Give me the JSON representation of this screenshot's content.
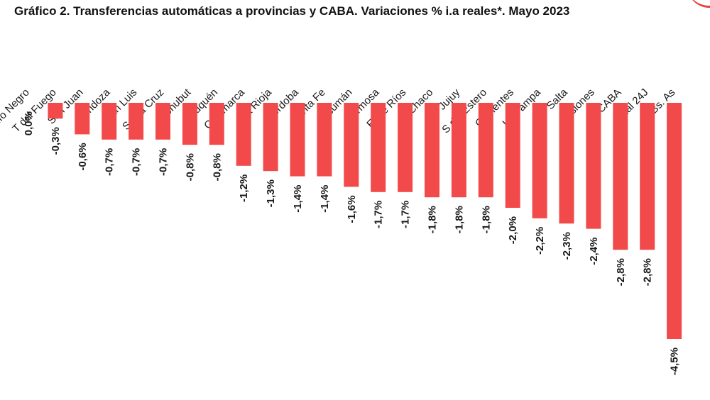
{
  "title": "Gráfico 2. Transferencias automáticas a provincias y CABA.  Variaciones % i.a reales*. Mayo 2023",
  "colors": {
    "bar": "#f24a4a",
    "accent": "#e8403f",
    "text": "#1a1a1a"
  },
  "chart_data": {
    "type": "bar",
    "title": "Gráfico 2. Transferencias automáticas a provincias y CABA.  Variaciones % i.a reales*. Mayo 2023",
    "xlabel": "",
    "ylabel": "",
    "ylim": [
      -4.5,
      0
    ],
    "grid": false,
    "legend": "none",
    "categories": [
      "Río Negro",
      "T del Fuego",
      "San Juan",
      "Mendoza",
      "San Luis",
      "Santa Cruz",
      "Chubut",
      "Neuquén",
      "Catamarca",
      "La Rioja",
      "Córdoba",
      "Santa Fe",
      "Tucumán",
      "Formosa",
      "Entre Ríos",
      "Chaco",
      "Jujuy",
      "S del Estero",
      "Corrientes",
      "La Pampa",
      "Salta",
      "Misiones",
      "CABA",
      "Total 24J",
      "Bs. As"
    ],
    "values": [
      0.0,
      -0.3,
      -0.6,
      -0.7,
      -0.7,
      -0.7,
      -0.8,
      -0.8,
      -1.2,
      -1.3,
      -1.4,
      -1.4,
      -1.6,
      -1.7,
      -1.7,
      -1.8,
      -1.8,
      -1.8,
      -2.0,
      -2.2,
      -2.3,
      -2.4,
      -2.8,
      -2.8,
      -4.5
    ],
    "data_labels": [
      "0,0%",
      "-0,3%",
      "-0,6%",
      "-0,7%",
      "-0,7%",
      "-0,7%",
      "-0,8%",
      "-0,8%",
      "-1,2%",
      "-1,3%",
      "-1,4%",
      "-1,4%",
      "-1,6%",
      "-1,7%",
      "-1,7%",
      "-1,8%",
      "-1,8%",
      "-1,8%",
      "-2,0%",
      "-2,2%",
      "-2,3%",
      "-2,4%",
      "-2,8%",
      "-2,8%",
      "-4,5%"
    ]
  }
}
